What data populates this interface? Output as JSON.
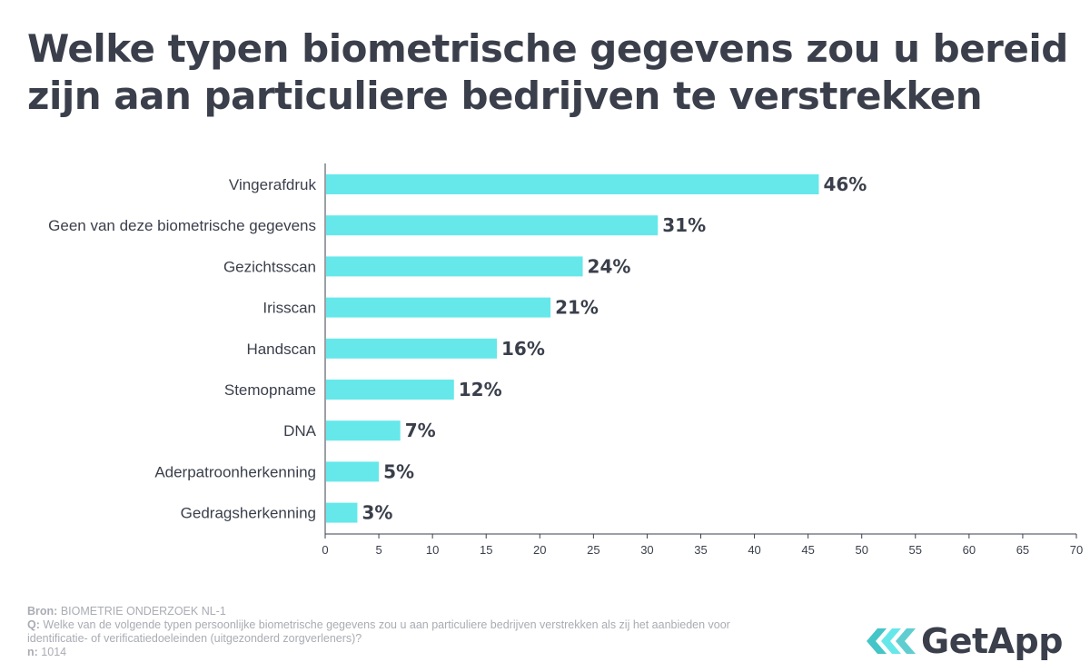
{
  "title": {
    "line1": "Welke typen biometrische gegevens zou u bereid",
    "line2": "zijn aan particuliere bedrijven te verstrekken"
  },
  "chart_data": {
    "type": "bar",
    "orientation": "horizontal",
    "categories": [
      "Vingerafdruk",
      "Geen van deze biometrische gegevens",
      "Gezichtsscan",
      "Irisscan",
      "Handscan",
      "Stemopname",
      "DNA",
      "Aderpatroonherkenning",
      "Gedragsherkenning"
    ],
    "values": [
      46,
      31,
      24,
      21,
      16,
      12,
      7,
      5,
      3
    ],
    "value_labels": [
      "46%",
      "31%",
      "24%",
      "21%",
      "16%",
      "12%",
      "7%",
      "5%",
      "3%"
    ],
    "xlim": [
      0,
      70
    ],
    "xticks": [
      0,
      5,
      10,
      15,
      20,
      25,
      30,
      35,
      40,
      45,
      50,
      55,
      60,
      65,
      70
    ],
    "bar_color": "#66e8ea",
    "grid": false
  },
  "footer": {
    "source_label": "Bron:",
    "source_value": "BIOMETRIE ONDERZOEK NL-1",
    "question_label": "Q:",
    "question_text": "Welke van de volgende typen persoonlijke biometrische gegevens zou u aan particuliere bedrijven verstrekken als zij het aanbieden voor identificatie- of verificatiedoeleinden (uitgezonderd zorgverleners)?",
    "n_label": "n:",
    "n_value": "1014"
  },
  "logo": {
    "text": "GetApp",
    "colors": [
      "#44c6c8",
      "#66e8ea",
      "#3a3f4b"
    ]
  }
}
